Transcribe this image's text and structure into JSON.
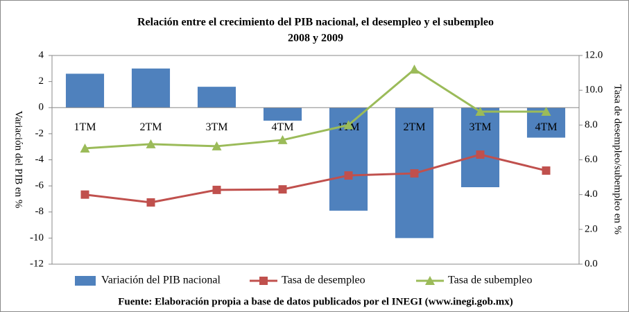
{
  "chart_data": {
    "type": "bar-line",
    "title": "Relación entre el crecimiento del PIB nacional, el desempleo y el subempleo",
    "subtitle": "2008 y 2009",
    "y_label": "Variación del PIB en %",
    "y2_label": "Tasa de desempleo/subempleo en %",
    "source": "Fuente: Elaboración propia a base de datos publicados por el INEGI (www.inegi.gob.mx)",
    "categories": [
      "1TM",
      "2TM",
      "3TM",
      "4TM",
      "1TM",
      "2TM",
      "3TM",
      "4TM"
    ],
    "series": [
      {
        "name": "Variación del PIB nacional",
        "type": "bar",
        "color": "#4f81bd",
        "values": [
          2.6,
          3.0,
          1.6,
          -1.0,
          -7.9,
          -10.0,
          -6.1,
          -2.3
        ]
      },
      {
        "name": "Tasa de desempleo",
        "type": "line",
        "marker": "square",
        "axis": "y2",
        "color": "#c0504d",
        "values": [
          4.0,
          3.55,
          4.27,
          4.3,
          5.1,
          5.22,
          6.3,
          5.38
        ]
      },
      {
        "name": "Tasa de subempleo",
        "type": "line",
        "marker": "triangle",
        "axis": "y2",
        "color": "#9bbb59",
        "values": [
          6.66,
          6.9,
          6.78,
          7.14,
          8.0,
          11.2,
          8.77,
          8.77
        ]
      }
    ],
    "ylim": [
      -12,
      4
    ],
    "yticks": [
      -12,
      -10,
      -8,
      -6,
      -4,
      -2,
      0,
      2,
      4
    ],
    "y2lim": [
      0,
      12
    ],
    "y2ticks": [
      {
        "value": 0,
        "label": "0.0"
      },
      {
        "value": 2,
        "label": "2.0"
      },
      {
        "value": 4,
        "label": "4.0"
      },
      {
        "value": 6,
        "label": "6.0"
      },
      {
        "value": 8,
        "label": "8.0"
      },
      {
        "value": 10,
        "label": "10.0"
      },
      {
        "value": 12,
        "label": "12.0"
      }
    ],
    "legend": "bottom",
    "grid": false
  }
}
